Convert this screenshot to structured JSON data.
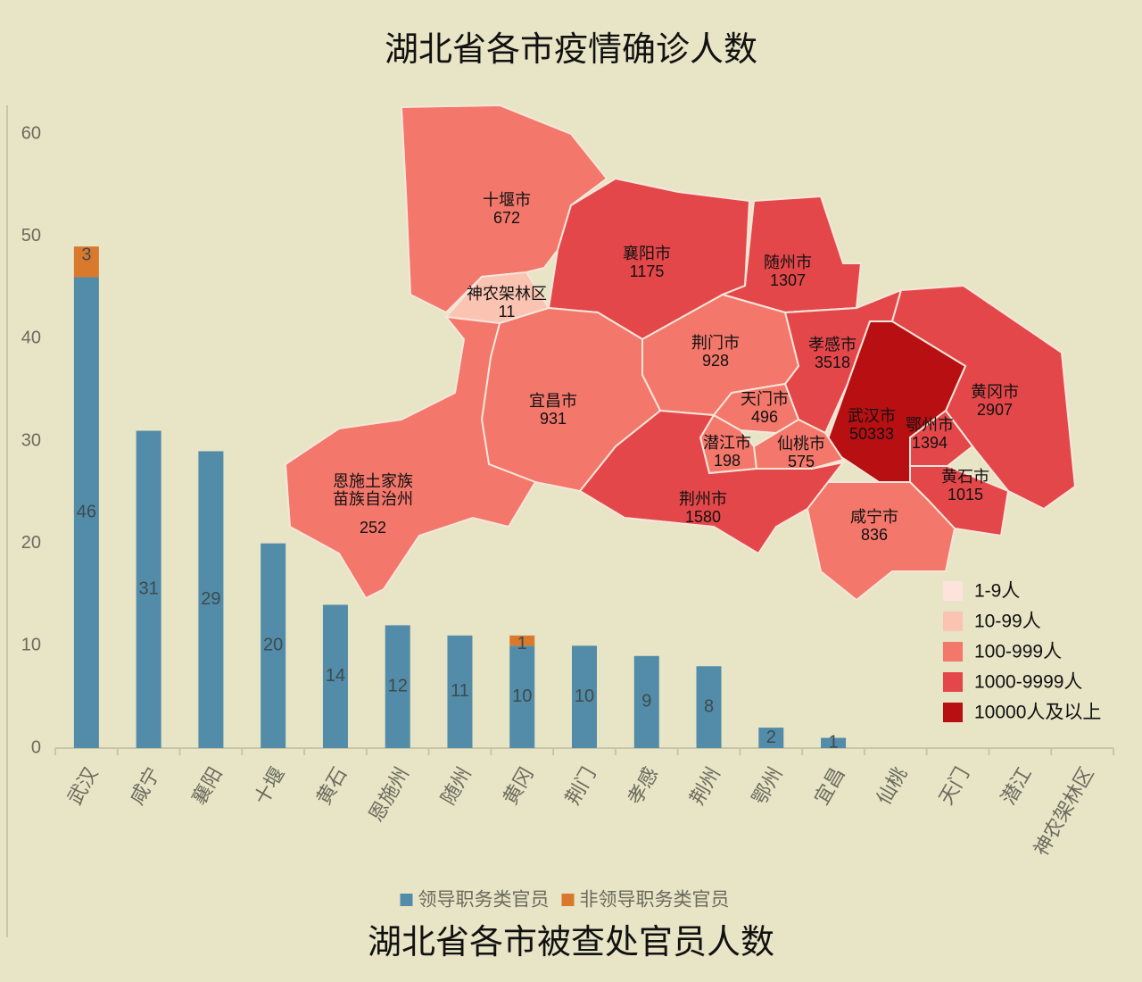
{
  "chart_data": [
    {
      "type": "map",
      "title": "湖北省各市疫情确诊人数",
      "regions": [
        {
          "name": "十堰市",
          "value": 672,
          "color": "#f3776b"
        },
        {
          "name": "襄阳市",
          "value": 1175,
          "color": "#e4474a"
        },
        {
          "name": "随州市",
          "value": 1307,
          "color": "#e4474a"
        },
        {
          "name": "神农架林区",
          "value": 11,
          "color": "#fbc3b2"
        },
        {
          "name": "孝感市",
          "value": 3518,
          "color": "#e4474a"
        },
        {
          "name": "黄冈市",
          "value": 2907,
          "color": "#e4474a"
        },
        {
          "name": "武汉市",
          "value": 50333,
          "color": "#b80f12"
        },
        {
          "name": "鄂州市",
          "value": 1394,
          "color": "#e4474a"
        },
        {
          "name": "黄石市",
          "value": 1015,
          "color": "#e4474a"
        },
        {
          "name": "咸宁市",
          "value": 836,
          "color": "#f3776b"
        },
        {
          "name": "荆门市",
          "value": 928,
          "color": "#f3776b"
        },
        {
          "name": "天门市",
          "value": 496,
          "color": "#f3776b"
        },
        {
          "name": "潜江市",
          "value": 198,
          "color": "#f3776b"
        },
        {
          "name": "仙桃市",
          "value": 575,
          "color": "#f3776b"
        },
        {
          "name": "荆州市",
          "value": 1580,
          "color": "#e4474a"
        },
        {
          "name": "宜昌市",
          "value": 931,
          "color": "#f3776b"
        },
        {
          "name": "恩施土家族\n苗族自治州",
          "value": 252,
          "color": "#f3776b"
        }
      ],
      "legend": [
        {
          "label": "1-9人",
          "color": "#fde3dc"
        },
        {
          "label": "10-99人",
          "color": "#fbc3b2"
        },
        {
          "label": "100-999人",
          "color": "#f3776b"
        },
        {
          "label": "1000-9999人",
          "color": "#e4474a"
        },
        {
          "label": "10000人及以上",
          "color": "#b80f12"
        }
      ]
    },
    {
      "type": "bar",
      "stacked": true,
      "title": "湖北省各市被查处官员人数",
      "categories": [
        "武汉",
        "咸宁",
        "襄阳",
        "十堰",
        "黄石",
        "恩施州",
        "随州",
        "黄冈",
        "荆门",
        "孝感",
        "荆州",
        "鄂州",
        "宜昌",
        "仙桃",
        "天门",
        "潜江",
        "神农架林区"
      ],
      "series": [
        {
          "name": "领导职务类官员",
          "color": "#528ca8",
          "values": [
            46,
            31,
            29,
            20,
            14,
            12,
            11,
            10,
            10,
            9,
            8,
            2,
            1,
            0,
            0,
            0,
            0
          ]
        },
        {
          "name": "非领导职务类官员",
          "color": "#d9792c",
          "values": [
            3,
            0,
            0,
            0,
            0,
            0,
            0,
            1,
            0,
            0,
            0,
            0,
            0,
            0,
            0,
            0,
            0
          ]
        }
      ],
      "ylim": [
        0,
        60
      ],
      "yticks": [
        0,
        10,
        20,
        30,
        40,
        50,
        60
      ],
      "legend_position": "bottom"
    }
  ]
}
